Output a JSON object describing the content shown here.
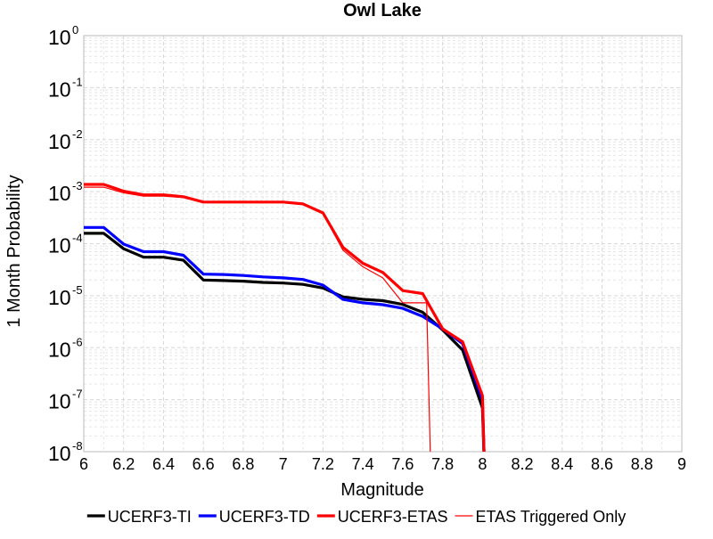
{
  "chart_data": {
    "type": "line",
    "title": "Owl Lake",
    "xlabel": "Magnitude",
    "ylabel": "1 Month Probability",
    "x_scale": "linear",
    "y_scale": "log",
    "xlim": [
      6,
      9
    ],
    "ylim": [
      1e-08,
      1
    ],
    "x_ticks": [
      "6",
      "6.2",
      "6.4",
      "6.6",
      "6.8",
      "7",
      "7.2",
      "7.4",
      "7.6",
      "7.8",
      "8",
      "8.2",
      "8.4",
      "8.6",
      "8.8",
      "9"
    ],
    "y_ticks": [
      {
        "base": "10",
        "exp": "0"
      },
      {
        "base": "10",
        "exp": "-1"
      },
      {
        "base": "10",
        "exp": "-2"
      },
      {
        "base": "10",
        "exp": "-3"
      },
      {
        "base": "10",
        "exp": "-4"
      },
      {
        "base": "10",
        "exp": "-5"
      },
      {
        "base": "10",
        "exp": "-6"
      },
      {
        "base": "10",
        "exp": "-7"
      },
      {
        "base": "10",
        "exp": "-8"
      }
    ],
    "grid": true,
    "legend_position": "bottom",
    "series": [
      {
        "name": "UCERF3-TI",
        "color": "#000000",
        "width": "thick",
        "x": [
          6.0,
          6.1,
          6.2,
          6.3,
          6.4,
          6.5,
          6.6,
          6.7,
          6.8,
          6.9,
          7.0,
          7.1,
          7.2,
          7.3,
          7.4,
          7.5,
          7.6,
          7.7,
          7.8,
          7.9,
          8.0,
          8.01
        ],
        "y": [
          0.000158,
          0.000158,
          8e-05,
          5.5e-05,
          5.5e-05,
          4.8e-05,
          2e-05,
          1.95e-05,
          1.9e-05,
          1.8e-05,
          1.75e-05,
          1.65e-05,
          1.4e-05,
          9.5e-06,
          8.5e-06,
          8e-06,
          6.8e-06,
          4.8e-06,
          2.2e-06,
          9e-07,
          7e-08,
          5e-09
        ]
      },
      {
        "name": "UCERF3-TD",
        "color": "#0000ff",
        "width": "thick",
        "x": [
          6.0,
          6.1,
          6.2,
          6.3,
          6.4,
          6.5,
          6.6,
          6.7,
          6.8,
          6.9,
          7.0,
          7.1,
          7.2,
          7.3,
          7.4,
          7.5,
          7.6,
          7.7,
          7.8,
          7.9,
          8.0,
          8.01
        ],
        "y": [
          0.000205,
          0.000205,
          9.8e-05,
          7e-05,
          7e-05,
          6e-05,
          2.6e-05,
          2.55e-05,
          2.45e-05,
          2.3e-05,
          2.2e-05,
          2.05e-05,
          1.6e-05,
          8.5e-06,
          7.3e-06,
          6.7e-06,
          5.7e-06,
          4e-06,
          2.3e-06,
          1.2e-06,
          1e-07,
          5e-09
        ]
      },
      {
        "name": "UCERF3-ETAS",
        "color": "#ff0000",
        "width": "thick",
        "x": [
          6.0,
          6.1,
          6.2,
          6.3,
          6.4,
          6.5,
          6.6,
          6.7,
          6.8,
          6.9,
          7.0,
          7.1,
          7.2,
          7.3,
          7.4,
          7.5,
          7.6,
          7.7,
          7.8,
          7.9,
          8.0,
          8.01
        ],
        "y": [
          0.00138,
          0.00138,
          0.00102,
          0.00087,
          0.00087,
          0.0008,
          0.00063,
          0.00063,
          0.00063,
          0.00063,
          0.00063,
          0.00058,
          0.00039,
          8.5e-05,
          4.2e-05,
          2.8e-05,
          1.25e-05,
          1.1e-05,
          2.3e-06,
          1.3e-06,
          1.2e-07,
          5e-09
        ]
      },
      {
        "name": "ETAS Triggered Only",
        "color": "#ff0000",
        "width": "thin",
        "x": [
          6.0,
          6.1,
          6.2,
          6.3,
          6.4,
          6.5,
          6.6,
          6.7,
          6.8,
          6.9,
          7.0,
          7.1,
          7.2,
          7.3,
          7.4,
          7.5,
          7.6,
          7.7,
          7.72,
          7.74
        ],
        "y": [
          0.00122,
          0.00122,
          0.00095,
          0.00082,
          0.00082,
          0.00077,
          0.00062,
          0.00062,
          0.00062,
          0.00062,
          0.00062,
          0.00057,
          0.00038,
          7.5e-05,
          3.6e-05,
          2.2e-05,
          7.3e-06,
          7.3e-06,
          7.3e-06,
          5e-09
        ]
      }
    ]
  }
}
